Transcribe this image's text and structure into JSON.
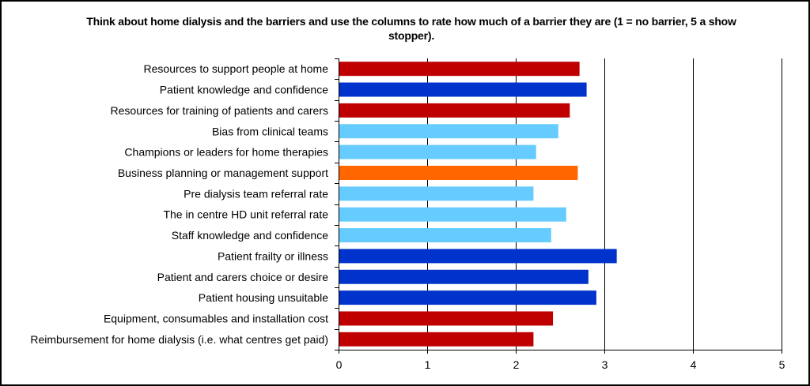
{
  "chart_data": {
    "type": "bar",
    "orientation": "horizontal",
    "title": "Think about home dialysis and the barriers and use the columns to rate how much of a barrier they are (1 = no barrier, 5 a show stopper).",
    "xlabel": "",
    "ylabel": "",
    "xlim": [
      0,
      5
    ],
    "xticks": [
      "0",
      "1",
      "2",
      "3",
      "4",
      "5"
    ],
    "grid": "vertical lines at major ticks",
    "legend": "none",
    "categories": [
      "Resources to support people at home",
      "Patient knowledge and confidence",
      "Resources for training of patients and carers",
      "Bias from clinical teams",
      "Champions or leaders for home therapies",
      "Business planning or management support",
      "Pre dialysis team referral rate",
      "The in centre HD unit referral rate",
      "Staff knowledge and confidence",
      "Patient frailty or illness",
      "Patient and carers choice or desire",
      "Patient housing unsuitable",
      "Equipment, consumables and installation cost",
      "Reimbursement for home dialysis (i.e. what centres get paid)"
    ],
    "values": [
      2.72,
      2.8,
      2.61,
      2.48,
      2.23,
      2.7,
      2.2,
      2.57,
      2.4,
      3.14,
      2.82,
      2.91,
      2.42,
      2.2
    ],
    "bar_colors": [
      "#C00000",
      "#0033CC",
      "#C00000",
      "#66CCFF",
      "#66CCFF",
      "#FF6600",
      "#66CCFF",
      "#66CCFF",
      "#66CCFF",
      "#0033CC",
      "#0033CC",
      "#0033CC",
      "#C00000",
      "#C00000"
    ],
    "axis_color": "#000000",
    "grid_color": "#000000"
  }
}
